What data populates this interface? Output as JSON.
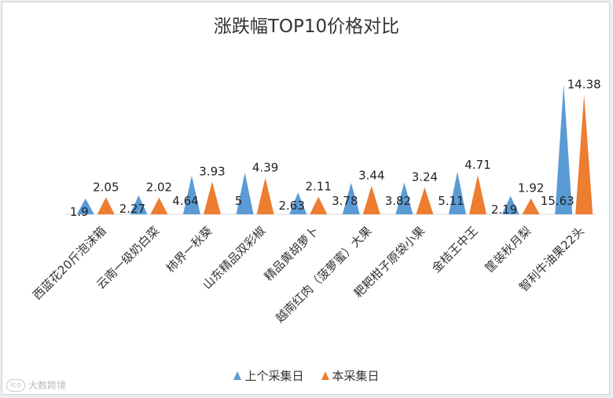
{
  "chart_data": {
    "type": "triangle-column",
    "title": "涨跌幅TOP10价格对比",
    "categories": [
      "西蓝花20斤泡沫箱",
      "云南一级奶白菜",
      "柿界一秋葵",
      "山东精品双彩椒",
      "精品黄胡萝卜",
      "越南红肉（菠萝蜜）大果",
      "耙耙柑子原袋小果",
      "金桔王中王",
      "筐装秋月梨",
      "智利牛油果22头"
    ],
    "series": [
      {
        "name": "上个采集日",
        "color": "#5b9bd5",
        "values": [
          1.9,
          2.27,
          4.64,
          5,
          2.63,
          3.78,
          3.82,
          5.11,
          2.19,
          15.63
        ]
      },
      {
        "name": "本采集日",
        "color": "#ed7d31",
        "values": [
          2.05,
          2.02,
          3.93,
          4.39,
          2.11,
          3.44,
          3.24,
          4.71,
          1.92,
          14.38
        ]
      }
    ],
    "ylim": [
      0,
      16.5
    ],
    "grid": false,
    "legend_position": "bottom"
  },
  "legend": {
    "items": [
      {
        "label": "上个采集日",
        "color": "#5b9bd5"
      },
      {
        "label": "本采集日",
        "color": "#ed7d31"
      }
    ]
  },
  "watermark": {
    "logo": "Ico",
    "text": "大数跨境"
  }
}
